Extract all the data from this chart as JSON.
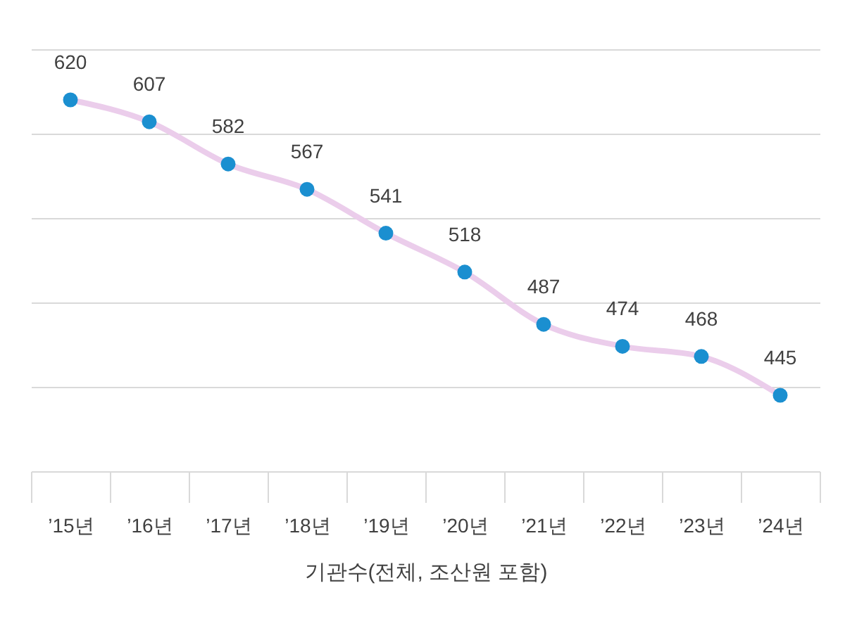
{
  "chart_data": {
    "type": "line",
    "xlabel": "기관수(전체, 조산원 포함)",
    "categories": [
      "’15년",
      "’16년",
      "’17년",
      "’18년",
      "’19년",
      "’20년",
      "’21년",
      "’22년",
      "’23년",
      "’24년"
    ],
    "series": [
      {
        "color": "#ebcdeb",
        "colors": [
          "#1b8fd0",
          "#1b8fd0",
          "#1b8fd0",
          "#1b8fd0",
          "#1b8fd0",
          "#1b8fd0",
          "#1b8fd0",
          "#1b8fd0",
          "#1b8fd0",
          "#1b8fd0"
        ],
        "values": [
          620,
          607,
          582,
          567,
          541,
          518,
          487,
          474,
          468,
          445
        ]
      }
    ],
    "ylim": [
      400,
      650
    ],
    "yticks": [
      {
        "value": 400,
        "label": null
      },
      {
        "value": 450,
        "label": null
      },
      {
        "value": 500,
        "label": null
      },
      {
        "value": 550,
        "label": null
      },
      {
        "value": 600,
        "label": null
      },
      {
        "value": 650,
        "label": null
      }
    ],
    "grid": "y",
    "marker": "circle",
    "data_labels": true
  }
}
